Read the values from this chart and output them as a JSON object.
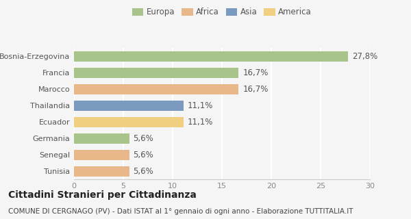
{
  "categories": [
    "Bosnia-Erzegovina",
    "Francia",
    "Marocco",
    "Thailandia",
    "Ecuador",
    "Germania",
    "Senegal",
    "Tunisia"
  ],
  "values": [
    27.8,
    16.7,
    16.7,
    11.1,
    11.1,
    5.6,
    5.6,
    5.6
  ],
  "labels": [
    "27,8%",
    "16,7%",
    "16,7%",
    "11,1%",
    "11,1%",
    "5,6%",
    "5,6%",
    "5,6%"
  ],
  "colors": [
    "#a8c48a",
    "#a8c48a",
    "#e8b88a",
    "#7a9bbf",
    "#f0d080",
    "#a8c48a",
    "#e8b88a",
    "#e8b88a"
  ],
  "legend_labels": [
    "Europa",
    "Africa",
    "Asia",
    "America"
  ],
  "legend_colors": [
    "#a8c48a",
    "#e8b88a",
    "#7a9bbf",
    "#f0d080"
  ],
  "xlim": [
    0,
    30
  ],
  "xticks": [
    0,
    5,
    10,
    15,
    20,
    25,
    30
  ],
  "title": "Cittadini Stranieri per Cittadinanza",
  "subtitle": "COMUNE DI CERGNAGO (PV) - Dati ISTAT al 1° gennaio di ogni anno - Elaborazione TUTTITALIA.IT",
  "background_color": "#f5f5f5",
  "bar_height": 0.65,
  "grid_color": "#ffffff",
  "title_fontsize": 10,
  "subtitle_fontsize": 7.5,
  "label_fontsize": 8.5,
  "tick_fontsize": 8,
  "legend_fontsize": 8.5
}
